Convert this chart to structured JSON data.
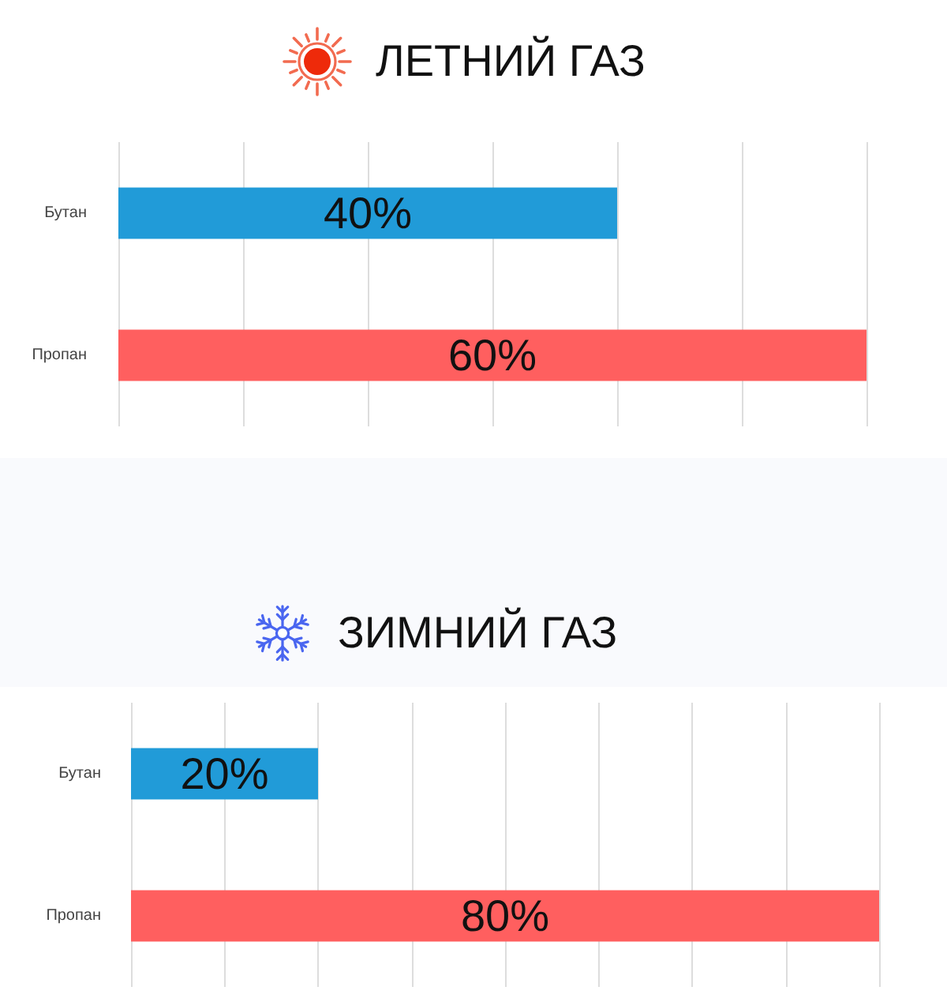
{
  "chart_data": [
    {
      "type": "bar",
      "orientation": "horizontal",
      "title": "ЛЕТНИЙ ГАЗ",
      "categories": [
        "Бутан",
        "Пропан"
      ],
      "values": [
        40,
        60
      ],
      "colors": [
        "#219bd8",
        "#ff5f5f"
      ],
      "value_labels": [
        "40%",
        "60%"
      ],
      "grid": "x",
      "tick_labels": "y"
    },
    {
      "type": "bar",
      "orientation": "horizontal",
      "title": "ЗИМНИЙ ГАЗ",
      "categories": [
        "Бутан",
        "Пропан"
      ],
      "values": [
        20,
        80
      ],
      "colors": [
        "#219bd8",
        "#ff5f5f"
      ],
      "value_labels": [
        "20%",
        "80%"
      ],
      "grid": "x",
      "tick_labels": "y"
    }
  ]
}
